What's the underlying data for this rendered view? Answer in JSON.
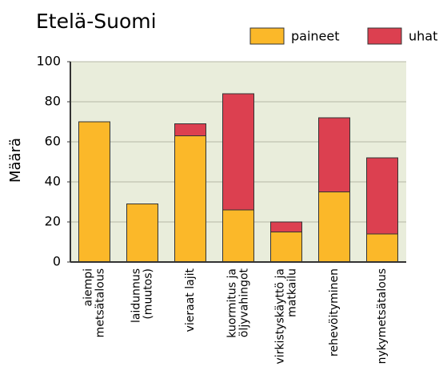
{
  "chart_data": {
    "type": "bar",
    "stacked": true,
    "title": "Etelä-Suomi",
    "y_label": "Määrä",
    "categories": [
      [
        "aiempi",
        "metsätalous"
      ],
      [
        "laidunnus",
        "(muutos)"
      ],
      [
        "vieraat lajit"
      ],
      [
        "kuormitus ja",
        "öljyvahingot"
      ],
      [
        "virkistyskäyttö ja",
        "matkailu"
      ],
      [
        "rehevöityminen"
      ],
      [
        "nykymetsätalous"
      ]
    ],
    "series": [
      {
        "name": "paineet",
        "color": "#fbb829",
        "values": [
          70,
          29,
          63,
          26,
          15,
          35,
          14
        ]
      },
      {
        "name": "uhat",
        "color": "#dc4050",
        "values": [
          0,
          0,
          6,
          58,
          5,
          37,
          38
        ]
      }
    ],
    "ylim": [
      0,
      100
    ],
    "yticks": [
      0,
      20,
      40,
      60,
      80,
      100
    ],
    "grid": true,
    "legend": "top-right"
  }
}
